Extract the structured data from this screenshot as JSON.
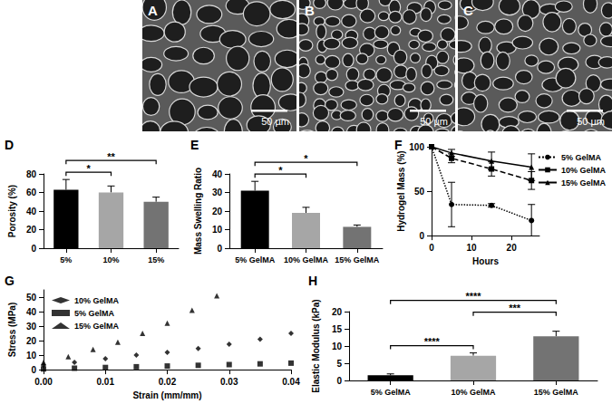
{
  "images": [
    {
      "label": "A",
      "scale_bar": "50 µm"
    },
    {
      "label": "B",
      "scale_bar": "50 µm"
    },
    {
      "label": "C",
      "scale_bar": "50 µm"
    }
  ],
  "chart_data": [
    {
      "type": "bar",
      "title": "D",
      "y_label": "Porosity (%)",
      "categories": [
        "5%",
        "10%",
        "15%"
      ],
      "values": [
        63,
        60,
        50
      ],
      "errors": [
        11,
        7,
        5
      ],
      "colors": [
        "#000000",
        "#a6a6a6",
        "#737373"
      ],
      "ylim": [
        0,
        80
      ],
      "yticks": [
        0,
        20,
        40,
        60,
        80
      ],
      "grid": false,
      "annotations": [
        {
          "from": "5%",
          "to": "10%",
          "text": "*"
        },
        {
          "from": "5%",
          "to": "15%",
          "text": "**"
        }
      ]
    },
    {
      "type": "bar",
      "title": "E",
      "y_label": "Mass Swelling Ratio",
      "categories": [
        "5% GelMA",
        "10% GelMA",
        "15% GelMA"
      ],
      "values": [
        31,
        19,
        11.5
      ],
      "errors": [
        5,
        3,
        1
      ],
      "colors": [
        "#000000",
        "#a6a6a6",
        "#737373"
      ],
      "ylim": [
        0,
        40
      ],
      "yticks": [
        0,
        10,
        20,
        30,
        40
      ],
      "grid": false,
      "annotations": [
        {
          "from": "5% GelMA",
          "to": "10% GelMA",
          "text": "*"
        },
        {
          "from": "5% GelMA",
          "to": "15% GelMA",
          "text": "*"
        }
      ]
    },
    {
      "type": "line",
      "title": "F",
      "x_label": "Hours",
      "y_label": "Hydrogel Mass (%)",
      "x": [
        0,
        5,
        15,
        25
      ],
      "xlim": [
        0,
        27
      ],
      "xticks": [
        0,
        10,
        20
      ],
      "ylim": [
        0,
        100
      ],
      "yticks": [
        0,
        50,
        100
      ],
      "grid": false,
      "legend": "upper right",
      "series": [
        {
          "name": "5% GelMA",
          "color": "#000000",
          "marker": "circle",
          "line_style": "dotted",
          "values": [
            100,
            35,
            34,
            17
          ],
          "errors": [
            0,
            25,
            2,
            18
          ]
        },
        {
          "name": "10% GelMA",
          "color": "#000000",
          "marker": "square",
          "line_style": "dashed",
          "values": [
            100,
            87,
            75,
            62
          ],
          "errors": [
            0,
            5,
            8,
            10
          ]
        },
        {
          "name": "15% GelMA",
          "color": "#000000",
          "marker": "triangle",
          "line_style": "solid",
          "values": [
            100,
            93,
            84,
            77
          ],
          "errors": [
            0,
            4,
            10,
            15
          ]
        }
      ]
    },
    {
      "type": "scatter",
      "title": "G",
      "x_label": "Strain (mm/mm)",
      "y_label": "Stress (MPa)",
      "xlim": [
        0,
        0.04
      ],
      "xticks": [
        {
          "value": 0,
          "label": "0.00"
        },
        {
          "value": 0.01,
          "label": "0.01"
        },
        {
          "value": 0.02,
          "label": "0.02"
        },
        {
          "value": 0.03,
          "label": "0.03"
        },
        {
          "value": 0.04,
          "label": "0.04"
        }
      ],
      "ylim": [
        0,
        55
      ],
      "yticks": [
        0,
        10,
        20,
        30,
        40,
        50
      ],
      "grid": false,
      "legend": "upper left",
      "series": [
        {
          "name": "10% GelMA",
          "color": "#000000",
          "marker": "diamond",
          "x": [
            0,
            0.005,
            0.01,
            0.015,
            0.02,
            0.025,
            0.03,
            0.035,
            0.04
          ],
          "values": [
            3,
            5,
            7.5,
            10,
            12,
            14.5,
            17.5,
            21,
            25
          ]
        },
        {
          "name": "5% GelMA",
          "color": "#000000",
          "marker": "square",
          "x": [
            0,
            0.005,
            0.01,
            0.015,
            0.02,
            0.025,
            0.03,
            0.035,
            0.04
          ],
          "values": [
            0.5,
            1,
            1.5,
            2,
            2.5,
            3,
            3.5,
            4,
            4.5
          ]
        },
        {
          "name": "15% GelMA",
          "color": "#000000",
          "marker": "triangle",
          "x": [
            0,
            0.004,
            0.008,
            0.012,
            0.016,
            0.02,
            0.024,
            0.028
          ],
          "values": [
            5,
            9,
            14,
            19,
            25,
            32,
            41,
            51
          ]
        }
      ]
    },
    {
      "type": "bar",
      "title": "H",
      "y_label": "Elastic Modulus (kPa)",
      "categories": [
        "5% GelMA",
        "10% GelMA",
        "15% GelMA"
      ],
      "values": [
        1.5,
        7.2,
        12.8
      ],
      "errors": [
        0.4,
        0.8,
        1.5
      ],
      "colors": [
        "#000000",
        "#a6a6a6",
        "#737373"
      ],
      "ylim": [
        0,
        20
      ],
      "yticks": [
        0,
        5,
        10,
        15,
        20
      ],
      "grid": false,
      "annotations": [
        {
          "from": "5% GelMA",
          "to": "10% GelMA",
          "text": "****"
        },
        {
          "from": "10% GelMA",
          "to": "15% GelMA",
          "text": "***"
        },
        {
          "from": "5% GelMA",
          "to": "15% GelMA",
          "text": "****"
        }
      ]
    }
  ]
}
